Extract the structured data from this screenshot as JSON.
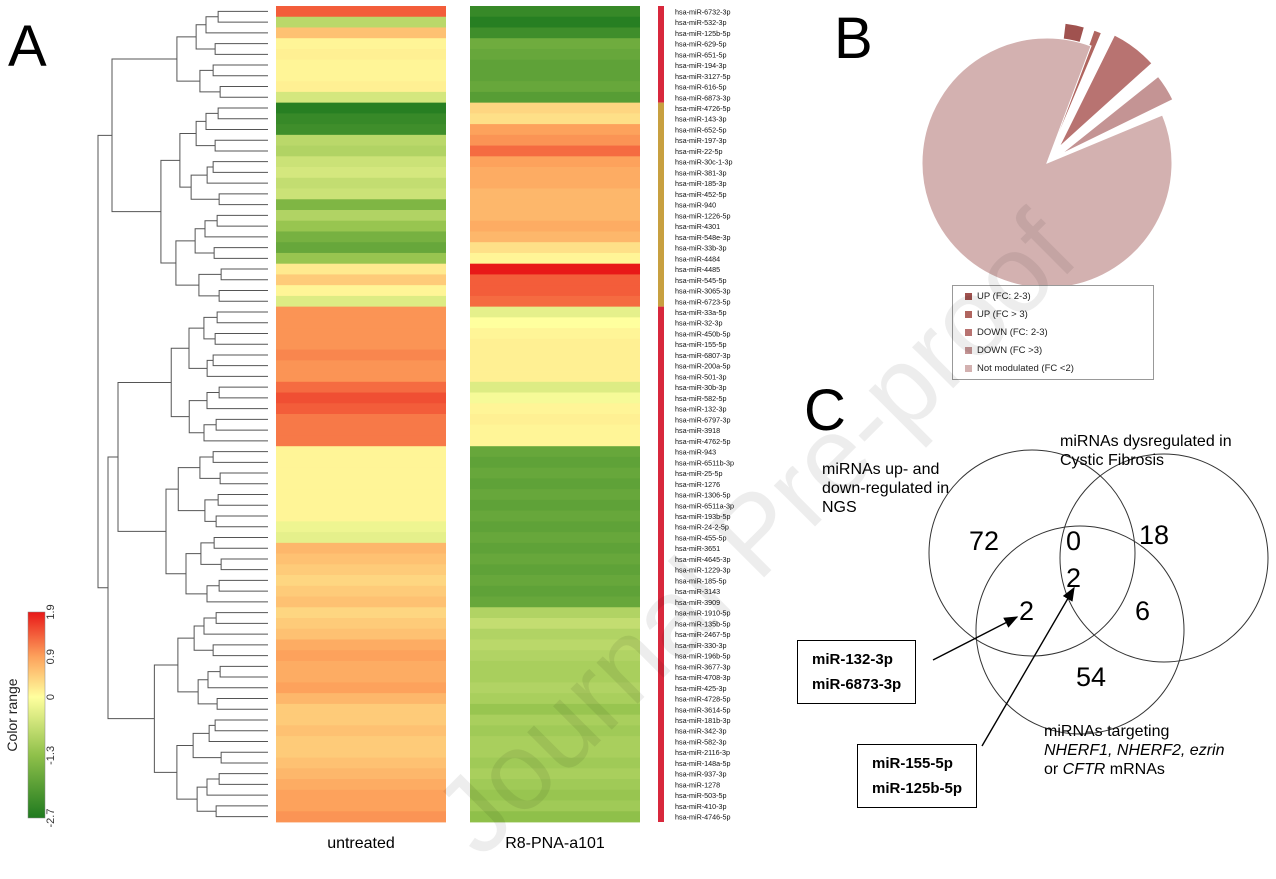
{
  "panels": {
    "a": "A",
    "b": "B",
    "c": "C"
  },
  "heatmap": {
    "columns": [
      "untreated",
      "R8-PNA-a101"
    ],
    "colorbar": {
      "title": "Color range",
      "ticks": [
        "-2.7",
        "-1.3",
        "0",
        "0.9",
        "1.9"
      ],
      "colors": [
        "#1f7a1f",
        "#8fc04a",
        "#ffff9e",
        "#fda25c",
        "#e81818"
      ]
    },
    "row_labels": [
      "hsa-miR-6732-3p",
      "hsa-miR-532-3p",
      "hsa-miR-125b-5p",
      "hsa-miR-629-5p",
      "hsa-miR-651-5p",
      "hsa-miR-194-3p",
      "hsa-miR-3127-5p",
      "hsa-miR-616-5p",
      "hsa-miR-6873-3p",
      "hsa-miR-4726-5p",
      "hsa-miR-143-3p",
      "hsa-miR-652-5p",
      "hsa-miR-197-3p",
      "hsa-miR-22-5p",
      "hsa-miR-30c-1-3p",
      "hsa-miR-381-3p",
      "hsa-miR-185-3p",
      "hsa-miR-452-5p",
      "hsa-miR-940",
      "hsa-miR-1226-5p",
      "hsa-miR-4301",
      "hsa-miR-548e-3p",
      "hsa-miR-33b-3p",
      "hsa-miR-4484",
      "hsa-miR-4485",
      "hsa-miR-545-5p",
      "hsa-miR-3065-3p",
      "hsa-miR-6723-5p",
      "hsa-miR-33a-5p",
      "hsa-miR-32-3p",
      "hsa-miR-450b-5p",
      "hsa-miR-155-5p",
      "hsa-miR-6807-3p",
      "hsa-miR-200a-5p",
      "hsa-miR-501-3p",
      "hsa-miR-30b-3p",
      "hsa-miR-582-5p",
      "hsa-miR-132-3p",
      "hsa-miR-6797-3p",
      "hsa-miR-3918",
      "hsa-miR-4762-5p",
      "hsa-miR-943",
      "hsa-miR-6511b-3p",
      "hsa-miR-25-5p",
      "hsa-miR-1276",
      "hsa-miR-1306-5p",
      "hsa-miR-6511a-3p",
      "hsa-miR-193b-5p",
      "hsa-miR-24-2-5p",
      "hsa-miR-455-5p",
      "hsa-miR-3651",
      "hsa-miR-4645-3p",
      "hsa-miR-1229-3p",
      "hsa-miR-185-5p",
      "hsa-miR-3143",
      "hsa-miR-3909",
      "hsa-miR-1910-5p",
      "hsa-miR-135b-5p",
      "hsa-miR-2467-5p",
      "hsa-miR-330-3p",
      "hsa-miR-196b-5p",
      "hsa-miR-3677-3p",
      "hsa-miR-4708-3p",
      "hsa-miR-425-3p",
      "hsa-miR-4728-5p",
      "hsa-miR-3614-5p",
      "hsa-miR-181b-3p",
      "hsa-miR-342-3p",
      "hsa-miR-582-3p",
      "hsa-miR-2116-3p",
      "hsa-miR-148a-5p",
      "hsa-miR-937-3p",
      "hsa-miR-1278",
      "hsa-miR-503-5p",
      "hsa-miR-410-3p",
      "hsa-miR-4746-5p"
    ],
    "cluster_bar_colors": {
      "up_group": "#c8a040",
      "down_group": "#d8283c"
    }
  },
  "chart_data": [
    {
      "type": "heatmap",
      "title": "",
      "columns": [
        "untreated",
        "R8-PNA-a101"
      ],
      "rows": [
        "hsa-miR-6732-3p",
        "hsa-miR-532-3p",
        "hsa-miR-125b-5p",
        "hsa-miR-629-5p",
        "hsa-miR-651-5p",
        "hsa-miR-194-3p",
        "hsa-miR-3127-5p",
        "hsa-miR-616-5p",
        "hsa-miR-6873-3p",
        "hsa-miR-4726-5p",
        "hsa-miR-143-3p",
        "hsa-miR-652-5p",
        "hsa-miR-197-3p",
        "hsa-miR-22-5p",
        "hsa-miR-30c-1-3p",
        "hsa-miR-381-3p",
        "hsa-miR-185-3p",
        "hsa-miR-452-5p",
        "hsa-miR-940",
        "hsa-miR-1226-5p",
        "hsa-miR-4301",
        "hsa-miR-548e-3p",
        "hsa-miR-33b-3p",
        "hsa-miR-4484",
        "hsa-miR-4485",
        "hsa-miR-545-5p",
        "hsa-miR-3065-3p",
        "hsa-miR-6723-5p",
        "hsa-miR-33a-5p",
        "hsa-miR-32-3p",
        "hsa-miR-450b-5p",
        "hsa-miR-155-5p",
        "hsa-miR-6807-3p",
        "hsa-miR-200a-5p",
        "hsa-miR-501-3p",
        "hsa-miR-30b-3p",
        "hsa-miR-582-5p",
        "hsa-miR-132-3p",
        "hsa-miR-6797-3p",
        "hsa-miR-3918",
        "hsa-miR-4762-5p",
        "hsa-miR-943",
        "hsa-miR-6511b-3p",
        "hsa-miR-25-5p",
        "hsa-miR-1276",
        "hsa-miR-1306-5p",
        "hsa-miR-6511a-3p",
        "hsa-miR-193b-5p",
        "hsa-miR-24-2-5p",
        "hsa-miR-455-5p",
        "hsa-miR-3651",
        "hsa-miR-4645-3p",
        "hsa-miR-1229-3p",
        "hsa-miR-185-5p",
        "hsa-miR-3143",
        "hsa-miR-3909",
        "hsa-miR-1910-5p",
        "hsa-miR-135b-5p",
        "hsa-miR-2467-5p",
        "hsa-miR-330-3p",
        "hsa-miR-196b-5p",
        "hsa-miR-3677-3p",
        "hsa-miR-4708-3p",
        "hsa-miR-425-3p",
        "hsa-miR-4728-5p",
        "hsa-miR-3614-5p",
        "hsa-miR-181b-3p",
        "hsa-miR-342-3p",
        "hsa-miR-582-3p",
        "hsa-miR-2116-3p",
        "hsa-miR-148a-5p",
        "hsa-miR-937-3p",
        "hsa-miR-1278",
        "hsa-miR-503-5p",
        "hsa-miR-410-3p",
        "hsa-miR-4746-5p"
      ],
      "values_untreated": [
        1.4,
        -0.8,
        0.6,
        0.1,
        0.15,
        0.1,
        0.1,
        0.15,
        -0.5,
        -2.6,
        -2.4,
        -2.3,
        -0.8,
        -0.9,
        -0.6,
        -0.5,
        -0.7,
        -0.6,
        -1.5,
        -0.9,
        -1.2,
        -1.6,
        -1.8,
        -1.2,
        0.2,
        0.5,
        0.1,
        -0.4,
        1.0,
        1.0,
        1.0,
        1.0,
        1.1,
        1.0,
        1.0,
        1.3,
        1.5,
        1.4,
        1.2,
        1.2,
        1.2,
        0.1,
        0.1,
        0.1,
        0.1,
        0.1,
        0.1,
        0.1,
        -0.2,
        -0.3,
        0.7,
        0.6,
        0.5,
        0.4,
        0.5,
        0.6,
        0.4,
        0.5,
        0.6,
        0.8,
        0.9,
        0.8,
        0.8,
        0.9,
        0.7,
        0.5,
        0.5,
        0.6,
        0.5,
        0.5,
        0.6,
        0.7,
        0.8,
        0.9,
        0.9,
        1.0
      ],
      "values_r8_pna_a101": [
        -2.4,
        -2.6,
        -2.3,
        -1.7,
        -1.8,
        -1.9,
        -1.9,
        -1.8,
        -2.0,
        0.4,
        0.3,
        0.9,
        1.0,
        1.3,
        0.9,
        0.8,
        0.8,
        0.7,
        0.7,
        0.7,
        0.8,
        0.7,
        0.3,
        0.1,
        1.9,
        1.4,
        1.4,
        1.3,
        -0.3,
        0.0,
        0.1,
        0.15,
        0.15,
        0.15,
        0.15,
        -0.4,
        -0.1,
        0.1,
        0.15,
        0.1,
        0.1,
        -1.8,
        -1.9,
        -1.8,
        -1.9,
        -1.8,
        -1.9,
        -1.8,
        -1.9,
        -1.8,
        -1.9,
        -1.8,
        -1.9,
        -1.8,
        -1.9,
        -1.8,
        -0.9,
        -0.7,
        -0.9,
        -0.8,
        -0.9,
        -1.0,
        -1.0,
        -0.9,
        -1.0,
        -1.2,
        -1.0,
        -1.1,
        -1.0,
        -1.0,
        -1.1,
        -1.0,
        -1.1,
        -1.2,
        -1.1,
        -1.3
      ],
      "colorbar_range": [
        -2.7,
        1.9
      ]
    },
    {
      "type": "pie",
      "title": "",
      "slices": [
        {
          "label": "UP (FC: 2-3)",
          "value": 2.5,
          "color": "#a0524f"
        },
        {
          "label": "UP (FC > 3)",
          "value": 1.0,
          "color": "#b0655f"
        },
        {
          "label": "DOWN (FC: 2-3)",
          "value": 6.0,
          "color": "#b87371"
        },
        {
          "label": "DOWN (FC >3)",
          "value": 3.5,
          "color": "#c49494"
        },
        {
          "label": "Not modulated (FC <2)",
          "value": 87.0,
          "color": "#d3b1b0"
        }
      ],
      "legend_position": "bottom"
    }
  ],
  "venn": {
    "set_labels": {
      "ngs": "miRNAs up- and down-regulated in NGS",
      "cf": "miRNAs dysregulated in Cystic Fibrosis",
      "targeting_line1": "miRNAs targeting",
      "targeting_line2_italic": "NHERF1, NHERF2, ezrin",
      "targeting_line3_italic": "CFTR",
      "targeting_line3_rest": " mRNAs",
      "targeting_or": "or "
    },
    "counts": {
      "ngs_only": "72",
      "ngs_cf": "0",
      "cf_only": "18",
      "ngs_target": "2",
      "all_three": "2",
      "cf_target": "6",
      "target_only": "54"
    },
    "box1": [
      "miR-132-3p",
      "miR-6873-3p"
    ],
    "box2": [
      "miR-155-5p",
      "miR-125b-5p"
    ]
  },
  "watermark": "Journal Pre-proof"
}
